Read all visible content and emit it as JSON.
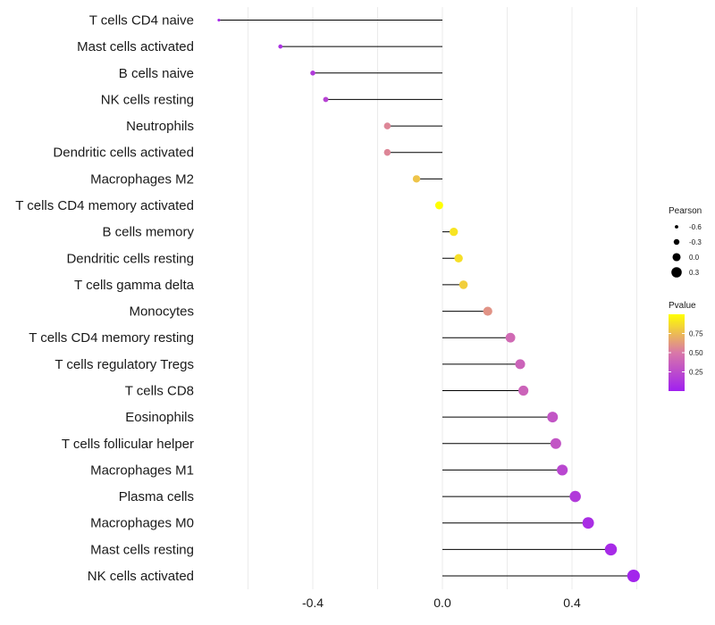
{
  "chart_data": {
    "type": "lollipop",
    "title": "",
    "xlabel": "",
    "ylabel": "",
    "xlim": [
      -0.72,
      0.62
    ],
    "xticks": [
      -0.4,
      0.0,
      0.4
    ],
    "xtick_labels": [
      "-0.4",
      "0.0",
      "0.4"
    ],
    "grid": true,
    "categories": [
      "T cells CD4 naive",
      "Mast cells activated",
      "B cells naive",
      "NK cells resting",
      "Neutrophils",
      "Dendritic cells activated",
      "Macrophages M2",
      "T cells CD4 memory activated",
      "B cells memory",
      "Dendritic cells resting",
      "T cells gamma delta",
      "Monocytes",
      "T cells CD4 memory resting",
      "T cells regulatory  Tregs ",
      "T cells CD8",
      "Eosinophils",
      "T cells follicular helper",
      "Macrophages M1",
      "Plasma cells",
      "Macrophages M0",
      "Mast cells resting",
      "NK cells activated"
    ],
    "pearson": [
      -0.69,
      -0.5,
      -0.4,
      -0.36,
      -0.17,
      -0.17,
      -0.08,
      -0.01,
      0.035,
      0.05,
      0.065,
      0.14,
      0.21,
      0.24,
      0.25,
      0.34,
      0.35,
      0.37,
      0.41,
      0.45,
      0.52,
      0.59
    ],
    "pvalue": [
      0.05,
      0.1,
      0.15,
      0.2,
      0.55,
      0.55,
      0.78,
      1.0,
      0.9,
      0.88,
      0.82,
      0.6,
      0.42,
      0.38,
      0.38,
      0.3,
      0.3,
      0.22,
      0.15,
      0.08,
      0.06,
      0.03
    ],
    "size_legend": {
      "title": "Pearson",
      "values": [
        -0.6,
        -0.3,
        0.0,
        0.3
      ],
      "labels": [
        "-0.6",
        "-0.3",
        "0.0",
        "0.3"
      ]
    },
    "color_legend": {
      "title": "Pvalue",
      "range": [
        0.0,
        1.0
      ],
      "ticks": [
        0.25,
        0.5,
        0.75
      ],
      "tick_labels": [
        "0.25",
        "0.50",
        "0.75"
      ],
      "low_color": "#a020f0",
      "mid_color": "#d978a8",
      "high_color": "#ffff00"
    }
  }
}
